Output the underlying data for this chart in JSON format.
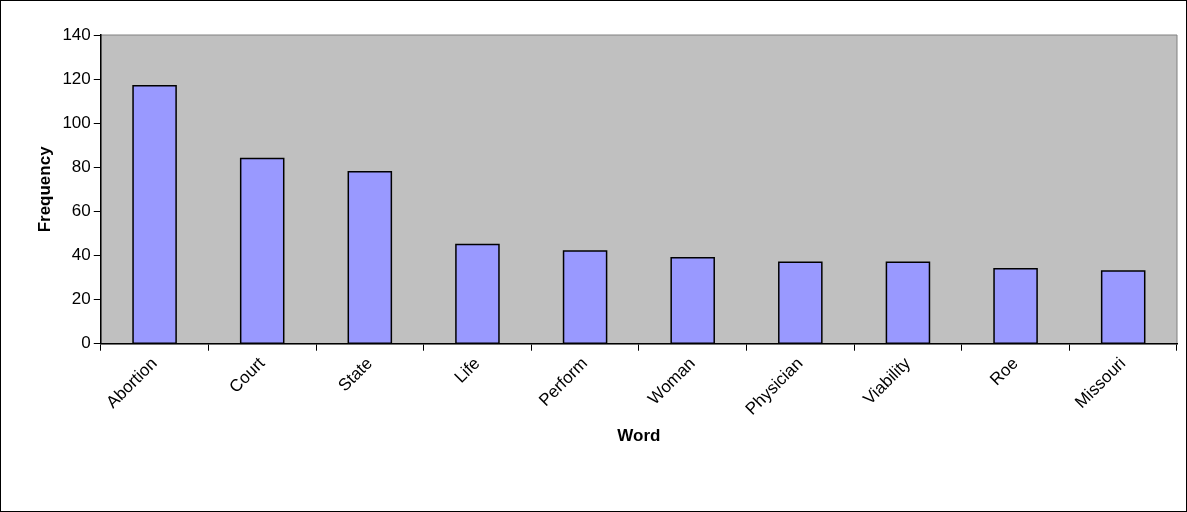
{
  "chart_data": {
    "type": "bar",
    "xlabel": "Word",
    "ylabel": "Frequency",
    "categories": [
      "Abortion",
      "Court",
      "State",
      "Life",
      "Perform",
      "Woman",
      "Physician",
      "Viability",
      "Roe",
      "Missouri"
    ],
    "values": [
      117,
      84,
      78,
      45,
      42,
      39,
      37,
      37,
      34,
      33
    ],
    "color": "#9999ff",
    "ylim": [
      0,
      140
    ],
    "yticks": [
      0,
      20,
      40,
      60,
      80,
      100,
      120,
      140
    ],
    "grid": false,
    "legend": false
  }
}
